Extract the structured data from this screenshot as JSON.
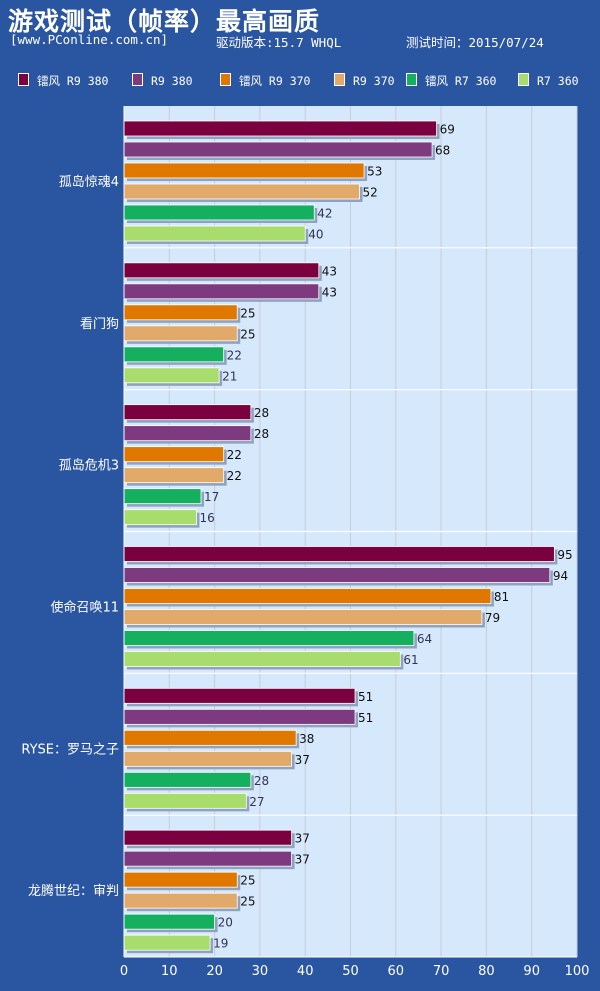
{
  "title": "游戏测试（帧率）最高画质",
  "subtitle": {
    "site": "[www.PConline.com.cn]",
    "driver": "驱动版本:15.7 WHQL",
    "date": "测试时间：2015/07/24"
  },
  "colors": {
    "background": "#2a55a0",
    "plot_area": "#d6e8fb",
    "grid": "#c9ccd4"
  },
  "chart_data": {
    "type": "bar",
    "orientation": "horizontal",
    "categories": [
      "孤岛惊魂4",
      "看门狗",
      "孤岛危机3",
      "使命召唤11",
      "RYSE：罗马之子",
      "龙腾世纪：审判"
    ],
    "series": [
      {
        "name": "镭风 R9 380",
        "color": "#7a0040",
        "values": [
          69,
          43,
          28,
          95,
          51,
          37
        ]
      },
      {
        "name": "R9 380",
        "color": "#7e3a7e",
        "values": [
          68,
          43,
          28,
          94,
          51,
          37
        ]
      },
      {
        "name": "镭风 R9 370",
        "color": "#e07800",
        "values": [
          53,
          25,
          22,
          81,
          38,
          25
        ]
      },
      {
        "name": "R9 370",
        "color": "#e2aa6a",
        "values": [
          52,
          25,
          22,
          79,
          37,
          25
        ]
      },
      {
        "name": "镭风 R7 360",
        "color": "#14b060",
        "values": [
          42,
          22,
          17,
          64,
          28,
          20
        ]
      },
      {
        "name": "R7 360",
        "color": "#a8dc6c",
        "values": [
          40,
          21,
          16,
          61,
          27,
          19
        ]
      }
    ],
    "xlim": [
      0,
      100
    ],
    "xticks": [
      0,
      10,
      20,
      30,
      40,
      50,
      60,
      70,
      80,
      90,
      100
    ],
    "grid": "vertical",
    "legend": "top",
    "xlabel": "",
    "ylabel": ""
  }
}
